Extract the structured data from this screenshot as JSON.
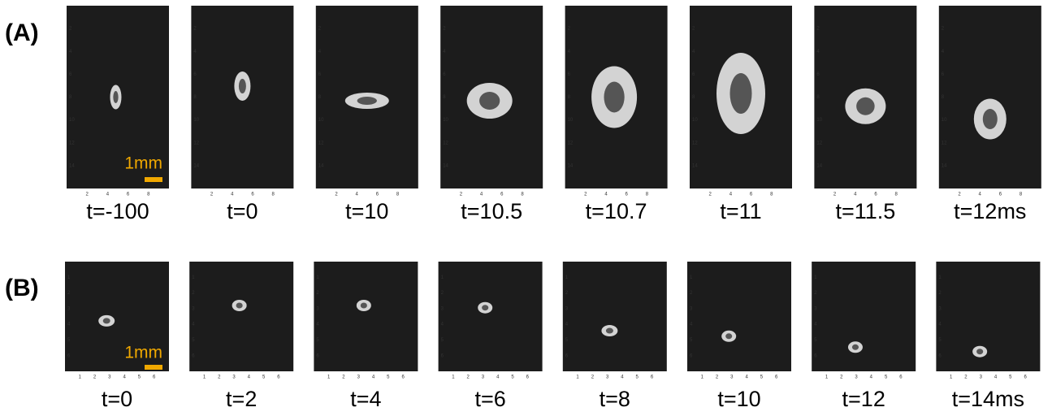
{
  "panels": [
    {
      "label": "(A)",
      "scale_bar": "1mm",
      "y_ticks": [
        "2",
        "4",
        "6",
        "8",
        "10",
        "12",
        "14"
      ],
      "x_ticks": [
        "2",
        "4",
        "6",
        "8"
      ],
      "frames": [
        {
          "time": "t=-100"
        },
        {
          "time": "t=0"
        },
        {
          "time": "t=10"
        },
        {
          "time": "t=10.5"
        },
        {
          "time": "t=10.7"
        },
        {
          "time": "t=11"
        },
        {
          "time": "t=11.5"
        },
        {
          "time": "t=12ms"
        }
      ]
    },
    {
      "label": "(B)",
      "scale_bar": "1mm",
      "y_ticks": [
        "1",
        "2",
        "3",
        "4",
        "5",
        "6"
      ],
      "x_ticks": [
        "1",
        "2",
        "3",
        "4",
        "5",
        "6"
      ],
      "frames": [
        {
          "time": "t=0"
        },
        {
          "time": "t=2"
        },
        {
          "time": "t=4"
        },
        {
          "time": "t=6"
        },
        {
          "time": "t=8"
        },
        {
          "time": "t=10"
        },
        {
          "time": "t=12"
        },
        {
          "time": "t=14ms"
        }
      ]
    }
  ]
}
